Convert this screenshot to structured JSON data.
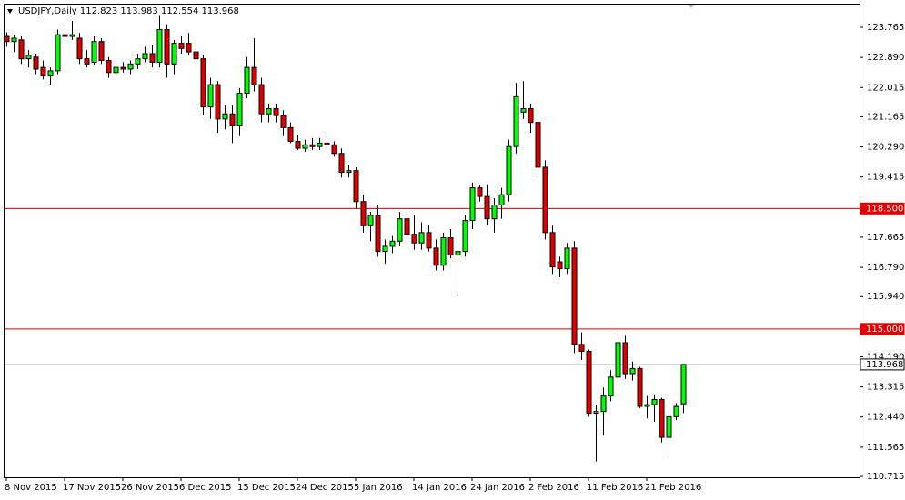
{
  "chart_data": {
    "type": "candlestick",
    "title": "USDJPY,Daily  112.823 113.983 112.554 113.968",
    "categories": [
      "8 Nov 2015",
      null,
      null,
      null,
      null,
      null,
      null,
      null,
      "17 Nov 2015",
      null,
      null,
      null,
      null,
      null,
      null,
      null,
      "26 Nov 2015",
      null,
      null,
      null,
      null,
      null,
      null,
      null,
      "6 Dec 2015",
      null,
      null,
      null,
      null,
      null,
      null,
      null,
      "15 Dec 2015",
      null,
      null,
      null,
      null,
      null,
      null,
      null,
      "24 Dec 2015",
      null,
      null,
      null,
      null,
      null,
      null,
      null,
      "5 Jan 2016",
      null,
      null,
      null,
      null,
      null,
      null,
      null,
      "14 Jan 2016",
      null,
      null,
      null,
      null,
      null,
      null,
      null,
      "24 Jan 2016",
      null,
      null,
      null,
      null,
      null,
      null,
      null,
      "2 Feb 2016",
      null,
      null,
      null,
      null,
      null,
      null,
      null,
      "11 Feb 2016",
      null,
      null,
      null,
      null,
      null,
      null,
      null,
      "21 Feb 2016",
      null,
      null,
      null,
      null,
      null
    ],
    "open": [
      123.5,
      123.35,
      123.4,
      122.85,
      122.9,
      122.6,
      122.35,
      122.5,
      123.55,
      123.5,
      123.45,
      122.85,
      122.75,
      123.35,
      122.8,
      122.45,
      122.6,
      122.55,
      122.7,
      122.85,
      123.0,
      122.75,
      123.7,
      122.7,
      123.3,
      123.3,
      123.05,
      122.85,
      121.45,
      122.1,
      121.1,
      121.25,
      120.9,
      121.85,
      122.6,
      122.1,
      121.25,
      121.4,
      121.2,
      120.85,
      120.45,
      120.25,
      120.35,
      120.3,
      120.4,
      120.35,
      120.1,
      119.55,
      119.6,
      118.7,
      118.0,
      118.3,
      117.25,
      117.4,
      117.55,
      118.2,
      117.75,
      117.5,
      117.8,
      117.35,
      116.85,
      117.65,
      117.15,
      117.25,
      118.15,
      119.1,
      118.85,
      118.2,
      118.6,
      118.9,
      120.3,
      121.3,
      121.4,
      121.0,
      119.7,
      117.8,
      116.95,
      116.75,
      117.35,
      114.55,
      114.35,
      112.55,
      112.6,
      113.05,
      113.6,
      114.6,
      113.7,
      113.85,
      112.75,
      112.8,
      112.95,
      111.85,
      112.45,
      112.823
    ],
    "high": [
      123.62,
      123.55,
      123.5,
      123.1,
      123.0,
      122.8,
      122.6,
      123.7,
      123.75,
      123.95,
      123.6,
      123.1,
      123.5,
      123.45,
      122.9,
      122.75,
      122.75,
      122.8,
      123.0,
      123.2,
      123.25,
      124.1,
      123.85,
      123.4,
      123.5,
      123.6,
      123.15,
      122.95,
      122.3,
      122.2,
      121.5,
      121.5,
      122.0,
      122.9,
      123.45,
      122.3,
      121.55,
      121.55,
      121.35,
      121.0,
      120.65,
      120.5,
      120.55,
      120.55,
      120.6,
      120.45,
      120.25,
      119.75,
      119.7,
      118.9,
      118.4,
      118.6,
      117.6,
      117.7,
      118.4,
      118.35,
      118.3,
      118.1,
      118.0,
      117.6,
      117.8,
      117.9,
      117.5,
      118.3,
      119.25,
      119.2,
      119.2,
      118.8,
      119.1,
      120.5,
      122.15,
      122.2,
      121.55,
      121.2,
      119.9,
      118.0,
      117.1,
      117.5,
      117.55,
      114.9,
      114.4,
      112.8,
      113.3,
      113.8,
      114.85,
      114.8,
      114.05,
      113.9,
      113.05,
      113.1,
      113.0,
      112.5,
      112.85,
      113.983
    ],
    "low": [
      123.2,
      123.05,
      122.7,
      122.6,
      122.4,
      122.25,
      122.1,
      122.4,
      123.35,
      123.4,
      122.7,
      122.6,
      122.65,
      122.7,
      122.3,
      122.3,
      122.45,
      122.4,
      122.55,
      122.75,
      122.6,
      122.6,
      122.3,
      122.4,
      123.0,
      122.95,
      122.7,
      121.2,
      121.1,
      120.7,
      120.8,
      120.4,
      120.6,
      121.7,
      121.9,
      121.0,
      121.0,
      121.0,
      120.6,
      120.4,
      120.2,
      120.15,
      120.2,
      120.2,
      120.25,
      120.0,
      119.4,
      119.4,
      118.5,
      117.8,
      117.55,
      117.1,
      116.9,
      117.2,
      117.4,
      117.6,
      117.3,
      117.3,
      117.25,
      116.7,
      116.7,
      117.05,
      116.0,
      117.1,
      117.9,
      118.7,
      118.0,
      117.8,
      118.2,
      118.7,
      120.1,
      121.1,
      120.7,
      119.4,
      117.6,
      116.6,
      116.5,
      116.6,
      114.3,
      114.1,
      112.45,
      111.15,
      111.9,
      112.9,
      113.45,
      113.55,
      113.5,
      112.7,
      112.4,
      112.3,
      111.7,
      111.25,
      112.35,
      112.554
    ],
    "close": [
      123.35,
      123.45,
      122.85,
      122.95,
      122.55,
      122.35,
      122.5,
      123.55,
      123.5,
      123.55,
      122.85,
      122.7,
      123.35,
      122.8,
      122.45,
      122.6,
      122.55,
      122.7,
      122.85,
      123.0,
      122.75,
      123.7,
      122.7,
      123.3,
      123.15,
      123.05,
      122.85,
      121.45,
      122.1,
      121.1,
      121.25,
      120.9,
      121.85,
      122.6,
      122.1,
      121.25,
      121.4,
      121.2,
      120.85,
      120.45,
      120.25,
      120.35,
      120.3,
      120.4,
      120.35,
      120.1,
      119.55,
      119.6,
      118.7,
      118.0,
      118.3,
      117.25,
      117.4,
      117.55,
      118.2,
      117.75,
      117.5,
      117.8,
      117.35,
      116.85,
      117.65,
      117.15,
      117.25,
      118.15,
      119.1,
      118.85,
      118.2,
      118.6,
      118.9,
      120.3,
      121.75,
      121.4,
      121.0,
      119.7,
      117.8,
      116.8,
      116.75,
      117.35,
      114.55,
      114.35,
      112.55,
      112.6,
      113.05,
      113.6,
      114.6,
      113.7,
      113.85,
      112.75,
      112.8,
      112.95,
      111.85,
      112.45,
      112.75,
      113.968
    ],
    "up_color": "#00ff00",
    "down_color": "#e00000",
    "ylim": [
      110.69,
      124.452
    ],
    "yticks": [
      123.765,
      {
        "value": 122.89,
        "label": "122.890"
      },
      122.015,
      121.165,
      {
        "value": 120.29,
        "label": "120.290"
      },
      119.415,
      117.665,
      {
        "value": 116.79,
        "label": "116.790"
      },
      {
        "value": 115.94,
        "label": "115.940"
      },
      {
        "value": 114.19,
        "label": "114.190"
      },
      113.315,
      {
        "value": 112.44,
        "label": "112.440"
      },
      111.565,
      110.715
    ],
    "hlines": [
      {
        "value": 118.5,
        "label": "118.500",
        "color": "#e00000"
      },
      {
        "value": 115,
        "label": "115.000",
        "color": "#e00000"
      },
      {
        "value": 113.968,
        "label": "113.968",
        "color": "#c0c0c0"
      }
    ],
    "grid": false
  }
}
